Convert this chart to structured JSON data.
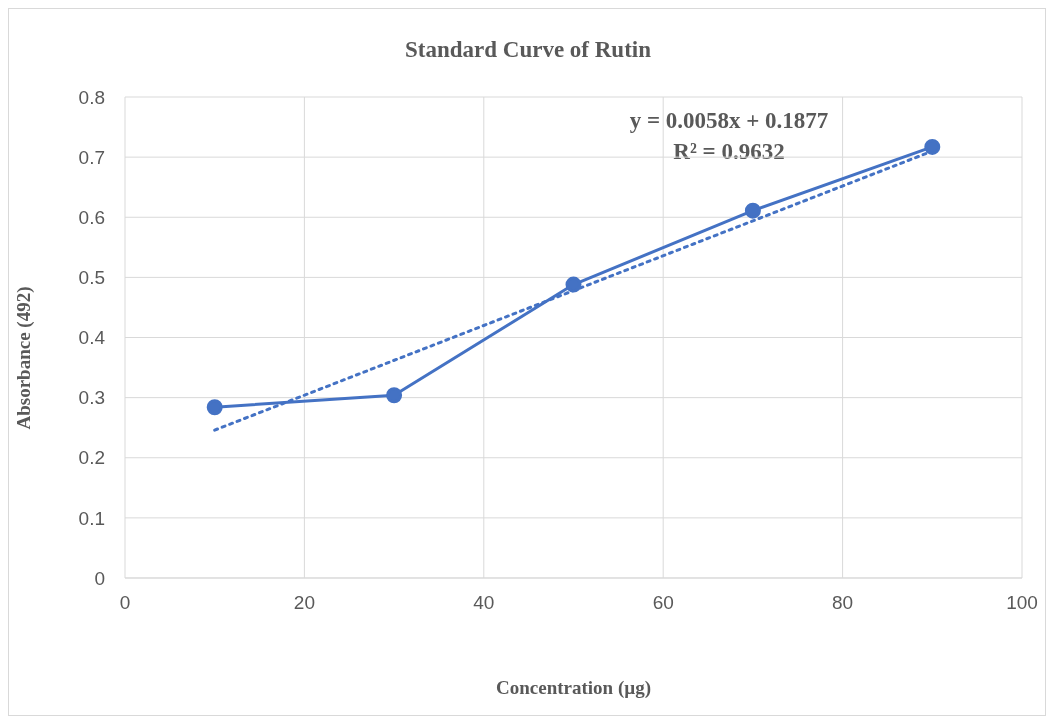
{
  "chart_data": {
    "type": "line",
    "title": "Standard Curve of Rutin",
    "xlabel": "Concentration (µg)",
    "ylabel": "Absorbance (492)",
    "xlim": [
      0,
      100
    ],
    "xticks": [
      0,
      20,
      40,
      60,
      80,
      100
    ],
    "ylim": [
      0,
      0.8
    ],
    "yticks": [
      0,
      0.1,
      0.2,
      0.3,
      0.4,
      0.5,
      0.6,
      0.7,
      0.8
    ],
    "grid": true,
    "series": [
      {
        "color": "#4472c4",
        "x": [
          10,
          30,
          50,
          70,
          90
        ],
        "values": [
          0.284,
          0.304,
          0.488,
          0.611,
          0.717
        ],
        "marker": "circle",
        "line_style": "solid"
      },
      {
        "type": "line",
        "color": "#4472c4",
        "x": [
          10,
          90
        ],
        "values": [
          0.246,
          0.71
        ],
        "marker": "none",
        "line_style": "dotted"
      }
    ],
    "annotations": [
      "y = 0.0058x + 0.1877",
      "R² = 0.9632"
    ]
  }
}
